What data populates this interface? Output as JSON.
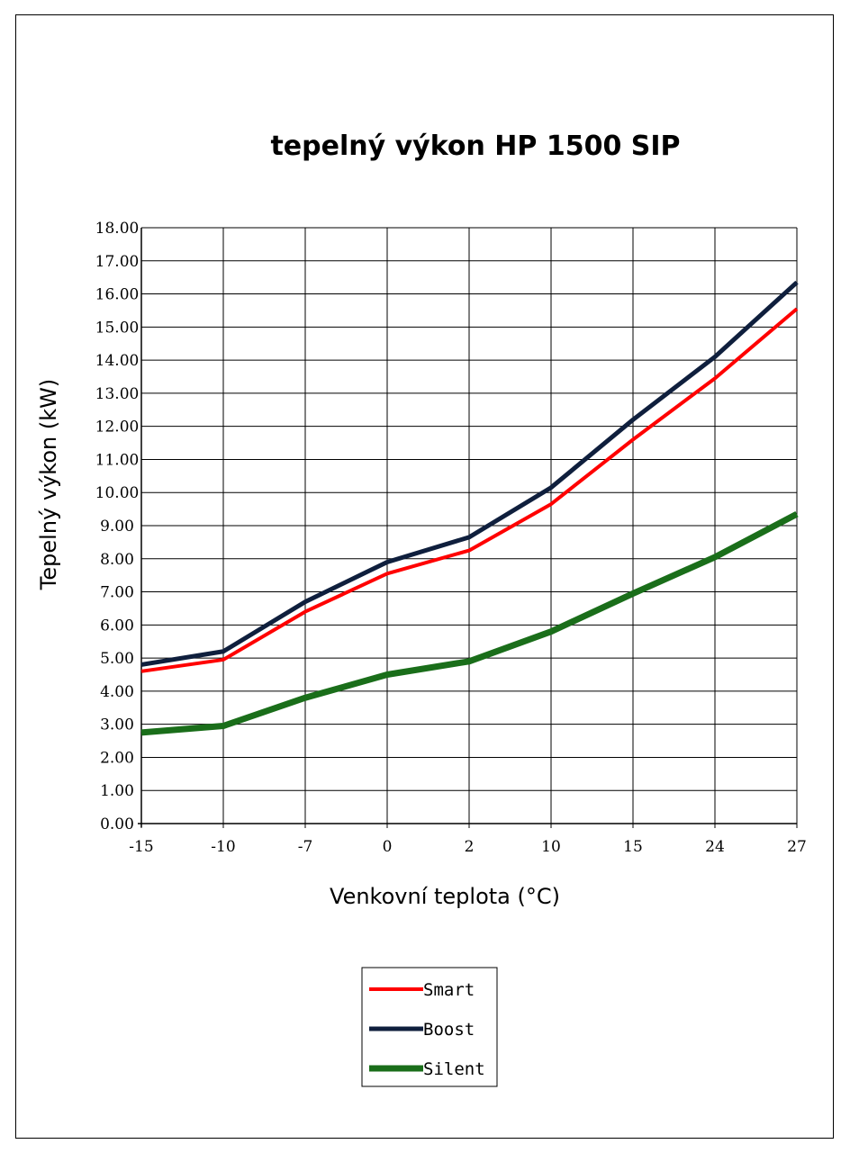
{
  "chart_data": {
    "type": "line",
    "title": "tepelný výkon HP 1500 SIP",
    "xlabel": "Venkovní teplota (°C)",
    "ylabel": "Tepelný výkon (kW)",
    "categories": [
      "-15",
      "-10",
      "-7",
      "0",
      "2",
      "10",
      "15",
      "24",
      "27"
    ],
    "y_tick_labels": [
      "0.00",
      "1.00",
      "2.00",
      "3.00",
      "4.00",
      "5.00",
      "6.00",
      "7.00",
      "8.00",
      "9.00",
      "10.00",
      "11.00",
      "12.00",
      "13.00",
      "14.00",
      "15.00",
      "16.00",
      "17.00",
      "18.00"
    ],
    "ylim": [
      0,
      18
    ],
    "grid": true,
    "legend_position": "bottom-center",
    "series": [
      {
        "name": "Smart",
        "color": "#ff0000",
        "values": [
          4.6,
          4.95,
          6.4,
          7.55,
          8.25,
          9.65,
          11.6,
          13.45,
          15.55
        ]
      },
      {
        "name": "Boost",
        "color": "#0f1f3d",
        "values": [
          4.8,
          5.2,
          6.7,
          7.9,
          8.65,
          10.15,
          12.2,
          14.1,
          16.35
        ]
      },
      {
        "name": "Silent",
        "color": "#1a6e1a",
        "values": [
          2.75,
          2.95,
          3.8,
          4.5,
          4.9,
          5.8,
          6.95,
          8.05,
          9.35
        ]
      }
    ]
  }
}
